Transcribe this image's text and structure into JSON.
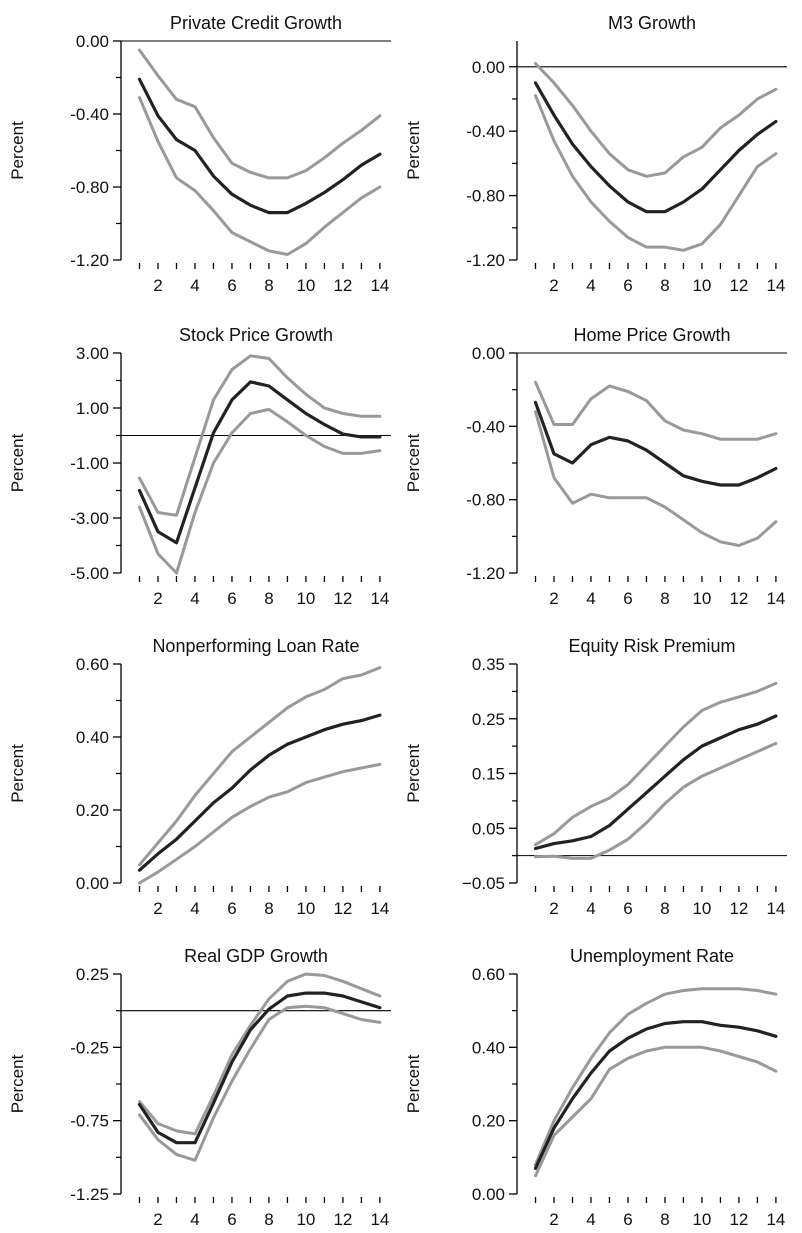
{
  "figure": {
    "background": "#ffffff",
    "band_color": "#999999",
    "estimate_color": "#222222",
    "axis_color": "#000000"
  },
  "chart_data": [
    {
      "type": "line",
      "title": "Private Credit Growth",
      "ylabel": "Percent",
      "xlabel": "",
      "ylim": [
        -1.2,
        0.0
      ],
      "yticks": [
        "0.00",
        "-0.40",
        "-0.80",
        "-1.20"
      ],
      "ytick_values": [
        0.0,
        -0.4,
        -0.8,
        -1.2
      ],
      "xlim": [
        0,
        14.6
      ],
      "xticks": [
        2,
        4,
        6,
        8,
        10,
        12,
        14
      ],
      "zero_line": true,
      "x": [
        1,
        2,
        3,
        4,
        5,
        6,
        7,
        8,
        9,
        10,
        11,
        12,
        13,
        14
      ],
      "series": [
        {
          "role": "upper",
          "values": [
            -0.05,
            -0.19,
            -0.32,
            -0.36,
            -0.53,
            -0.67,
            -0.72,
            -0.75,
            -0.75,
            -0.71,
            -0.64,
            -0.56,
            -0.49,
            -0.41
          ]
        },
        {
          "role": "estimate",
          "values": [
            -0.21,
            -0.41,
            -0.54,
            -0.6,
            -0.74,
            -0.84,
            -0.9,
            -0.94,
            -0.94,
            -0.89,
            -0.83,
            -0.76,
            -0.68,
            -0.62
          ]
        },
        {
          "role": "lower",
          "values": [
            -0.31,
            -0.55,
            -0.75,
            -0.82,
            -0.93,
            -1.05,
            -1.1,
            -1.15,
            -1.17,
            -1.11,
            -1.02,
            -0.94,
            -0.86,
            -0.8
          ]
        }
      ]
    },
    {
      "type": "line",
      "title": "M3 Growth",
      "ylabel": "Percent",
      "xlabel": "",
      "ylim": [
        -1.2,
        0.16
      ],
      "yticks": [
        "0.00",
        "-0.40",
        "-0.80",
        "-1.20"
      ],
      "ytick_values": [
        0.0,
        -0.4,
        -0.8,
        -1.2
      ],
      "xlim": [
        0,
        14.6
      ],
      "xticks": [
        2,
        4,
        6,
        8,
        10,
        12,
        14
      ],
      "zero_line": true,
      "x": [
        1,
        2,
        3,
        4,
        5,
        6,
        7,
        8,
        9,
        10,
        11,
        12,
        13,
        14
      ],
      "series": [
        {
          "role": "upper",
          "values": [
            0.02,
            -0.1,
            -0.24,
            -0.4,
            -0.54,
            -0.64,
            -0.68,
            -0.66,
            -0.56,
            -0.5,
            -0.38,
            -0.3,
            -0.2,
            -0.14
          ]
        },
        {
          "role": "estimate",
          "values": [
            -0.1,
            -0.3,
            -0.48,
            -0.62,
            -0.74,
            -0.84,
            -0.9,
            -0.9,
            -0.84,
            -0.76,
            -0.64,
            -0.52,
            -0.42,
            -0.34
          ]
        },
        {
          "role": "lower",
          "values": [
            -0.18,
            -0.46,
            -0.68,
            -0.84,
            -0.96,
            -1.06,
            -1.12,
            -1.12,
            -1.14,
            -1.1,
            -0.98,
            -0.8,
            -0.62,
            -0.54
          ]
        }
      ]
    },
    {
      "type": "line",
      "title": "Stock Price Growth",
      "ylabel": "Percent",
      "xlabel": "",
      "ylim": [
        -5.0,
        3.0
      ],
      "yticks": [
        "3.00",
        "1.00",
        "-1.00",
        "-3.00",
        "-5.00"
      ],
      "ytick_values": [
        3.0,
        1.0,
        -1.0,
        -3.0,
        -5.0
      ],
      "xlim": [
        0,
        14.6
      ],
      "xticks": [
        2,
        4,
        6,
        8,
        10,
        12,
        14
      ],
      "zero_line": true,
      "x": [
        1,
        2,
        3,
        4,
        5,
        6,
        7,
        8,
        9,
        10,
        11,
        12,
        13,
        14
      ],
      "series": [
        {
          "role": "upper",
          "values": [
            -1.55,
            -2.8,
            -2.9,
            -0.8,
            1.3,
            2.4,
            2.9,
            2.8,
            2.1,
            1.5,
            1.0,
            0.8,
            0.7,
            0.7
          ]
        },
        {
          "role": "estimate",
          "values": [
            -2.0,
            -3.5,
            -3.9,
            -1.9,
            0.1,
            1.3,
            1.95,
            1.8,
            1.3,
            0.8,
            0.4,
            0.05,
            -0.05,
            -0.05
          ]
        },
        {
          "role": "lower",
          "values": [
            -2.6,
            -4.3,
            -5.0,
            -2.8,
            -1.0,
            0.1,
            0.8,
            0.95,
            0.5,
            0.0,
            -0.4,
            -0.65,
            -0.65,
            -0.55
          ]
        }
      ]
    },
    {
      "type": "line",
      "title": "Home Price Growth",
      "ylabel": "Percent",
      "xlabel": "",
      "ylim": [
        -1.2,
        0.0
      ],
      "yticks": [
        "0.00",
        "-0.40",
        "-0.80",
        "-1.20"
      ],
      "ytick_values": [
        0.0,
        -0.4,
        -0.8,
        -1.2
      ],
      "xlim": [
        0,
        14.6
      ],
      "xticks": [
        2,
        4,
        6,
        8,
        10,
        12,
        14
      ],
      "zero_line": true,
      "x": [
        1,
        2,
        3,
        4,
        5,
        6,
        7,
        8,
        9,
        10,
        11,
        12,
        13,
        14
      ],
      "series": [
        {
          "role": "upper",
          "values": [
            -0.16,
            -0.39,
            -0.39,
            -0.25,
            -0.18,
            -0.21,
            -0.26,
            -0.37,
            -0.42,
            -0.44,
            -0.47,
            -0.47,
            -0.47,
            -0.44
          ]
        },
        {
          "role": "estimate",
          "values": [
            -0.27,
            -0.55,
            -0.6,
            -0.5,
            -0.46,
            -0.48,
            -0.53,
            -0.6,
            -0.67,
            -0.7,
            -0.72,
            -0.72,
            -0.68,
            -0.63
          ]
        },
        {
          "role": "lower",
          "values": [
            -0.32,
            -0.68,
            -0.82,
            -0.77,
            -0.79,
            -0.79,
            -0.79,
            -0.84,
            -0.91,
            -0.98,
            -1.03,
            -1.05,
            -1.01,
            -0.92
          ]
        }
      ]
    },
    {
      "type": "line",
      "title": "Nonperforming Loan Rate",
      "ylabel": "Percent",
      "xlabel": "",
      "ylim": [
        0.0,
        0.6
      ],
      "yticks": [
        "0.60",
        "0.40",
        "0.20",
        "0.00"
      ],
      "ytick_values": [
        0.6,
        0.4,
        0.2,
        0.0
      ],
      "xlim": [
        0,
        14.6
      ],
      "xticks": [
        2,
        4,
        6,
        8,
        10,
        12,
        14
      ],
      "zero_line": false,
      "x": [
        1,
        2,
        3,
        4,
        5,
        6,
        7,
        8,
        9,
        10,
        11,
        12,
        13,
        14
      ],
      "series": [
        {
          "role": "upper",
          "values": [
            0.05,
            0.11,
            0.17,
            0.24,
            0.3,
            0.36,
            0.4,
            0.44,
            0.48,
            0.51,
            0.53,
            0.56,
            0.57,
            0.59
          ]
        },
        {
          "role": "estimate",
          "values": [
            0.035,
            0.08,
            0.12,
            0.17,
            0.22,
            0.26,
            0.31,
            0.35,
            0.38,
            0.4,
            0.42,
            0.435,
            0.445,
            0.46
          ]
        },
        {
          "role": "lower",
          "values": [
            0.0,
            0.03,
            0.065,
            0.1,
            0.14,
            0.18,
            0.21,
            0.235,
            0.25,
            0.275,
            0.29,
            0.305,
            0.315,
            0.325
          ]
        }
      ]
    },
    {
      "type": "line",
      "title": "Equity Risk Premium",
      "ylabel": "Percent",
      "xlabel": "",
      "ylim": [
        -0.05,
        0.35
      ],
      "yticks": [
        "0.35",
        "0.25",
        "0.15",
        "0.05",
        "−0.05"
      ],
      "ytick_values": [
        0.35,
        0.25,
        0.15,
        0.05,
        -0.05
      ],
      "xlim": [
        0,
        14.6
      ],
      "xticks": [
        2,
        4,
        6,
        8,
        10,
        12,
        14
      ],
      "zero_line": true,
      "x": [
        1,
        2,
        3,
        4,
        5,
        6,
        7,
        8,
        9,
        10,
        11,
        12,
        13,
        14
      ],
      "series": [
        {
          "role": "upper",
          "values": [
            0.02,
            0.04,
            0.07,
            0.09,
            0.105,
            0.13,
            0.165,
            0.2,
            0.235,
            0.265,
            0.28,
            0.29,
            0.3,
            0.315
          ]
        },
        {
          "role": "estimate",
          "values": [
            0.013,
            0.022,
            0.027,
            0.035,
            0.055,
            0.085,
            0.115,
            0.145,
            0.175,
            0.2,
            0.215,
            0.23,
            0.24,
            0.255
          ]
        },
        {
          "role": "lower",
          "values": [
            -0.002,
            -0.001,
            -0.005,
            -0.005,
            0.01,
            0.03,
            0.06,
            0.095,
            0.125,
            0.145,
            0.16,
            0.175,
            0.19,
            0.205
          ]
        }
      ]
    },
    {
      "type": "line",
      "title": "Real GDP Growth",
      "ylabel": "Percent",
      "xlabel": "",
      "ylim": [
        -1.25,
        0.25
      ],
      "yticks": [
        "0.25",
        "-0.25",
        "-0.75",
        "-1.25"
      ],
      "ytick_values": [
        0.25,
        -0.25,
        -0.75,
        -1.25
      ],
      "xlim": [
        0,
        14.6
      ],
      "xticks": [
        2,
        4,
        6,
        8,
        10,
        12,
        14
      ],
      "zero_line": true,
      "x": [
        1,
        2,
        3,
        4,
        5,
        6,
        7,
        8,
        9,
        10,
        11,
        12,
        13,
        14
      ],
      "series": [
        {
          "role": "upper",
          "values": [
            -0.62,
            -0.77,
            -0.82,
            -0.84,
            -0.58,
            -0.3,
            -0.1,
            0.08,
            0.2,
            0.25,
            0.24,
            0.2,
            0.15,
            0.1
          ]
        },
        {
          "role": "estimate",
          "values": [
            -0.64,
            -0.83,
            -0.9,
            -0.9,
            -0.63,
            -0.35,
            -0.13,
            0.01,
            0.1,
            0.12,
            0.12,
            0.1,
            0.06,
            0.02
          ]
        },
        {
          "role": "lower",
          "values": [
            -0.71,
            -0.88,
            -0.98,
            -1.02,
            -0.73,
            -0.48,
            -0.26,
            -0.06,
            0.02,
            0.03,
            0.02,
            -0.02,
            -0.06,
            -0.08
          ]
        }
      ]
    },
    {
      "type": "line",
      "title": "Unemployment Rate",
      "ylabel": "Percent",
      "xlabel": "",
      "ylim": [
        0.0,
        0.6
      ],
      "yticks": [
        "0.60",
        "0.40",
        "0.20",
        "0.00"
      ],
      "ytick_values": [
        0.6,
        0.4,
        0.2,
        0.0
      ],
      "xlim": [
        0,
        14.6
      ],
      "xticks": [
        2,
        4,
        6,
        8,
        10,
        12,
        14
      ],
      "zero_line": false,
      "x": [
        1,
        2,
        3,
        4,
        5,
        6,
        7,
        8,
        9,
        10,
        11,
        12,
        13,
        14
      ],
      "series": [
        {
          "role": "upper",
          "values": [
            0.08,
            0.2,
            0.29,
            0.37,
            0.44,
            0.49,
            0.52,
            0.545,
            0.555,
            0.56,
            0.56,
            0.56,
            0.555,
            0.545
          ]
        },
        {
          "role": "estimate",
          "values": [
            0.07,
            0.18,
            0.26,
            0.33,
            0.39,
            0.425,
            0.45,
            0.465,
            0.47,
            0.47,
            0.46,
            0.455,
            0.445,
            0.43
          ]
        },
        {
          "role": "lower",
          "values": [
            0.05,
            0.16,
            0.21,
            0.26,
            0.34,
            0.37,
            0.39,
            0.4,
            0.4,
            0.4,
            0.39,
            0.375,
            0.36,
            0.335
          ]
        }
      ]
    }
  ]
}
